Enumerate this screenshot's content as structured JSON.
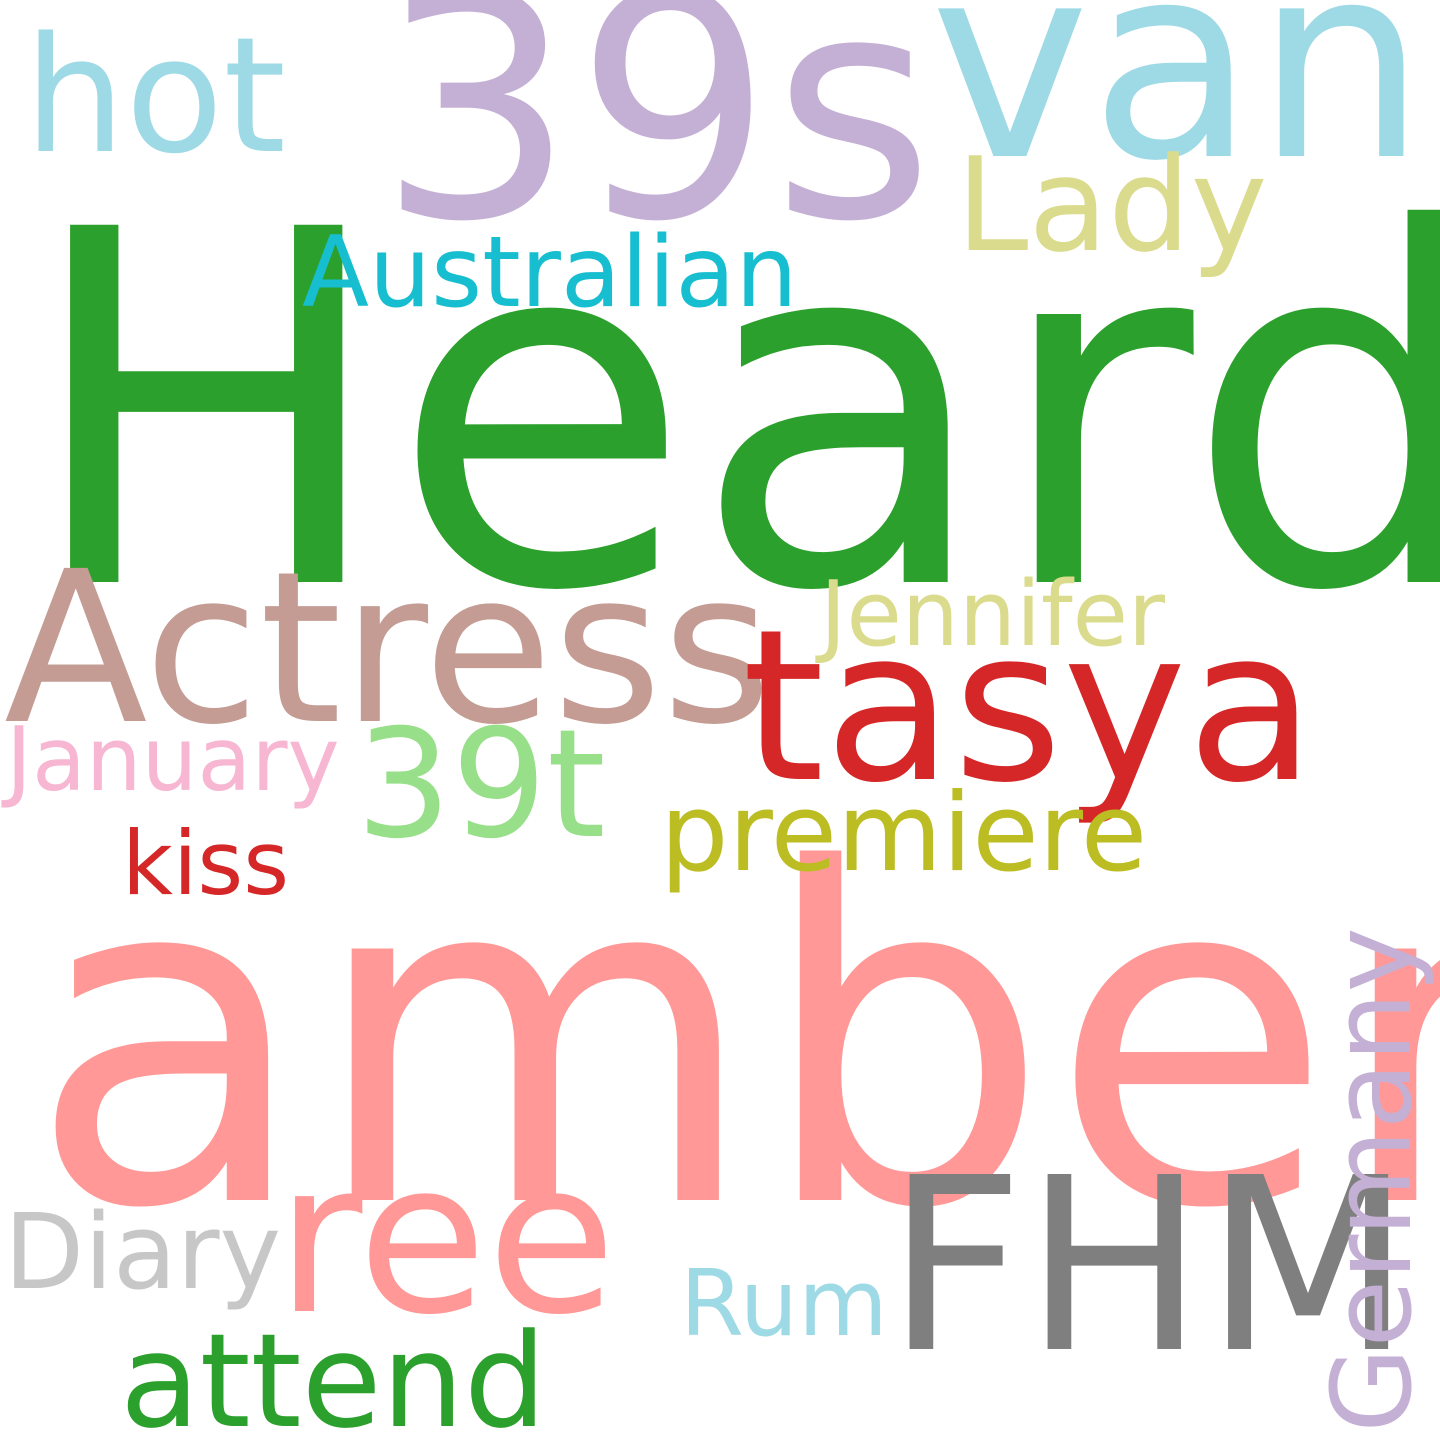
{
  "word_cloud": {
    "background_color": "#ffffff",
    "words": [
      {
        "text": "Heard",
        "color": "#2ca02c"
      },
      {
        "text": "amber",
        "color": "#ff9896"
      },
      {
        "text": "39s",
        "color": "#c5b0d5"
      },
      {
        "text": "van",
        "color": "#9edae5"
      },
      {
        "text": "hot",
        "color": "#9edae5"
      },
      {
        "text": "Lady",
        "color": "#dbdb8d"
      },
      {
        "text": "Australian",
        "color": "#17becf"
      },
      {
        "text": "Actress",
        "color": "#c49c94"
      },
      {
        "text": "tasya",
        "color": "#d62728"
      },
      {
        "text": "Jennifer",
        "color": "#dbdb8d"
      },
      {
        "text": "January",
        "color": "#f7b6d2"
      },
      {
        "text": "39t",
        "color": "#98df8a"
      },
      {
        "text": "premiere",
        "color": "#bcbd22"
      },
      {
        "text": "kiss",
        "color": "#d62728"
      },
      {
        "text": "ree",
        "color": "#ff9896"
      },
      {
        "text": "FHM",
        "color": "#7f7f7f"
      },
      {
        "text": "Diary",
        "color": "#c7c7c7"
      },
      {
        "text": "Germany",
        "color": "#c5b0d5",
        "orientation": "vertical"
      },
      {
        "text": "Rum",
        "color": "#9edae5"
      },
      {
        "text": "attend",
        "color": "#2ca02c"
      }
    ]
  }
}
